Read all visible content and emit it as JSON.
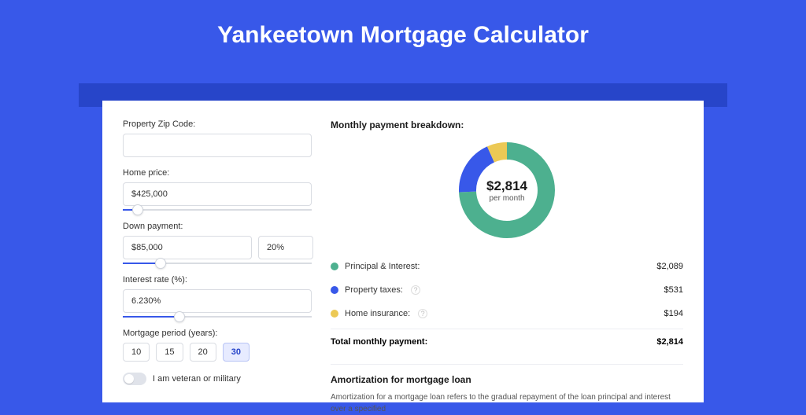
{
  "page": {
    "title": "Yankeetown Mortgage Calculator",
    "bg_color": "#3858e9",
    "banner_color": "#2745c9",
    "card_bg": "#ffffff"
  },
  "form": {
    "zip": {
      "label": "Property Zip Code:",
      "value": ""
    },
    "home_price": {
      "label": "Home price:",
      "value": "$425,000",
      "slider_pct": 8
    },
    "down_payment": {
      "label": "Down payment:",
      "amount": "$85,000",
      "percent": "20%",
      "slider_pct": 20
    },
    "interest_rate": {
      "label": "Interest rate (%):",
      "value": "6.230%",
      "slider_pct": 30
    },
    "mortgage_period": {
      "label": "Mortgage period (years):",
      "options": [
        "10",
        "15",
        "20",
        "30"
      ],
      "selected_index": 3
    },
    "veteran": {
      "label": "I am veteran or military",
      "value": false
    }
  },
  "breakdown": {
    "title": "Monthly payment breakdown:",
    "center_amount": "$2,814",
    "center_sub": "per month",
    "donut": {
      "segments": [
        {
          "key": "principal_interest",
          "color": "#4db08f",
          "pct": 74.2
        },
        {
          "key": "property_taxes",
          "color": "#3858e9",
          "pct": 18.9
        },
        {
          "key": "home_insurance",
          "color": "#ecc955",
          "pct": 6.9
        }
      ],
      "thickness": 22,
      "bg_ring": "#ffffff"
    },
    "items": [
      {
        "label": "Principal & Interest:",
        "value": "$2,089",
        "dot": "green",
        "info": false
      },
      {
        "label": "Property taxes:",
        "value": "$531",
        "dot": "blue",
        "info": true
      },
      {
        "label": "Home insurance:",
        "value": "$194",
        "dot": "yellow",
        "info": true
      }
    ],
    "total_label": "Total monthly payment:",
    "total_value": "$2,814"
  },
  "amortization": {
    "title": "Amortization for mortgage loan",
    "text": "Amortization for a mortgage loan refers to the gradual repayment of the loan principal and interest over a specified"
  },
  "colors": {
    "input_border": "#d9dce2",
    "text_primary": "#1a1a1a",
    "text_secondary": "#333333",
    "text_muted": "#555555",
    "divider": "#eceef2"
  }
}
